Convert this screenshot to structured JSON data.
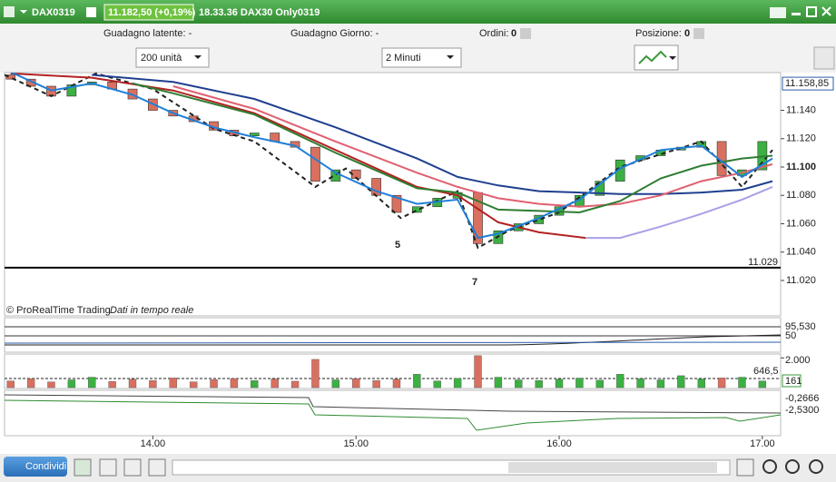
{
  "window": {
    "symbol": "DAX0319",
    "price": "11.182,50 (+0,19%)",
    "status": "18.33.36 DAX30 Only0319"
  },
  "info_bar": {
    "unrealized": "Guadagno latente: -",
    "daily": "Guadagno Giorno: -",
    "orders_label": "Ordini:",
    "orders": "0",
    "position_label": "Posizione:",
    "position": "0"
  },
  "controls": {
    "quantity": "200 unità",
    "timeframe": "2 Minuti"
  },
  "chart_data": {
    "type": "candlestick",
    "x": [
      13.3,
      13.4,
      13.5,
      13.6,
      13.7,
      13.8,
      13.9,
      14.0,
      14.1,
      14.2,
      14.3,
      14.4,
      14.5,
      14.6,
      14.7,
      14.8,
      14.9,
      15.0,
      15.1,
      15.2,
      15.3,
      15.4,
      15.5,
      15.6,
      15.7,
      15.8,
      15.9,
      16.0,
      16.1,
      16.2,
      16.3,
      16.4,
      16.5,
      16.6,
      16.7,
      16.8,
      16.9,
      17.0
    ],
    "open": [
      11165,
      11162,
      11157,
      11150,
      11158,
      11160,
      11155,
      11148,
      11140,
      11136,
      11132,
      11126,
      11122,
      11124,
      11118,
      11114,
      11090,
      11098,
      11092,
      11080,
      11068,
      11072,
      11078,
      11082,
      11046,
      11055,
      11060,
      11066,
      11072,
      11080,
      11090,
      11105,
      11108,
      11112,
      11114,
      11118,
      11094,
      11098
    ],
    "close": [
      11162,
      11157,
      11150,
      11158,
      11160,
      11155,
      11148,
      11140,
      11136,
      11132,
      11126,
      11122,
      11124,
      11118,
      11114,
      11090,
      11098,
      11092,
      11080,
      11068,
      11072,
      11078,
      11082,
      11046,
      11055,
      11060,
      11066,
      11072,
      11080,
      11090,
      11105,
      11108,
      11112,
      11114,
      11118,
      11094,
      11098,
      11118
    ],
    "up_color": "#3cb043",
    "down_color": "#d9705f",
    "lines": [
      {
        "color": "#222222",
        "style": "dashed",
        "x": [
          13.27,
          13.5,
          13.72,
          14.0,
          14.3,
          14.5,
          14.8,
          14.95,
          15.22,
          15.5,
          15.6,
          15.75,
          16.0,
          16.3,
          16.7,
          16.9,
          17.05
        ],
        "values": [
          11165,
          11150,
          11166,
          11155,
          11127,
          11118,
          11086,
          11099,
          11064,
          11083,
          11043,
          11055,
          11068,
          11100,
          11118,
          11086,
          11112
        ]
      },
      {
        "color": "#1f3f8f",
        "style": "solid",
        "x": [
          13.7,
          14.1,
          14.5,
          14.9,
          15.3,
          15.5,
          15.7,
          15.9,
          16.1,
          16.3,
          16.5,
          16.7,
          16.9,
          17.05
        ],
        "values": [
          11165,
          11160,
          11148,
          11128,
          11106,
          11093,
          11087,
          11083,
          11082,
          11081,
          11081,
          11082,
          11084,
          11090
        ]
      },
      {
        "color": "#e06070",
        "style": "solid",
        "x": [
          14.1,
          14.5,
          14.9,
          15.3,
          15.5,
          15.7,
          15.9,
          16.1,
          16.3,
          16.5,
          16.7,
          16.9,
          17.05
        ],
        "values": [
          11157,
          11141,
          11118,
          11096,
          11086,
          11078,
          11074,
          11072,
          11074,
          11080,
          11090,
          11096,
          11102
        ]
      },
      {
        "color": "#b22222",
        "style": "solid",
        "x": [
          13.3,
          13.7,
          14.1,
          14.5,
          14.9,
          15.3,
          15.5,
          15.7,
          15.9,
          16.13
        ],
        "values": [
          11166,
          11163,
          11154,
          11138,
          11112,
          11086,
          11080,
          11061,
          11054,
          11050
        ]
      },
      {
        "color": "#a8a0e8",
        "style": "solid",
        "x": [
          16.13,
          16.3,
          16.5,
          16.7,
          16.9,
          17.05
        ],
        "values": [
          11050,
          11050,
          11058,
          11067,
          11077,
          11086
        ]
      },
      {
        "color": "#2e7d32",
        "style": "solid",
        "x": [
          13.9,
          14.1,
          14.5,
          14.9,
          15.3,
          15.5,
          15.7,
          15.9,
          16.1,
          16.3,
          16.5,
          16.7,
          16.9,
          17.05
        ],
        "values": [
          11159,
          11152,
          11137,
          11110,
          11085,
          11082,
          11070,
          11069,
          11068,
          11076,
          11092,
          11101,
          11106,
          11108
        ]
      },
      {
        "color": "#1e7fd8",
        "style": "solid",
        "x": [
          13.3,
          13.5,
          13.7,
          13.9,
          14.1,
          14.3,
          14.5,
          14.7,
          14.9,
          15.1,
          15.3,
          15.5,
          15.6,
          15.7,
          15.9,
          16.1,
          16.3,
          16.5,
          16.7,
          16.9,
          17.05
        ],
        "values": [
          11167,
          11154,
          11159,
          11151,
          11138,
          11128,
          11121,
          11115,
          11096,
          11083,
          11074,
          11077,
          11050,
          11053,
          11064,
          11077,
          11099,
          11112,
          11115,
          11093,
          11106
        ]
      }
    ],
    "xlim": [
      13.27,
      17.09
    ],
    "ylim": [
      10995,
      11166.6
    ],
    "xticks": [
      {
        "value": 14,
        "label": "14.00"
      },
      {
        "value": 15,
        "label": "15.00"
      },
      {
        "value": 16,
        "label": "16.00"
      },
      {
        "value": 17,
        "label": "17.00"
      }
    ],
    "yticks": [
      {
        "value": 11140,
        "label": "11.140"
      },
      {
        "value": 11120,
        "label": "11.120"
      },
      {
        "value": 11100,
        "label": "11.100"
      },
      {
        "value": 11080,
        "label": "11.080"
      },
      {
        "value": 11060,
        "label": "11.060"
      },
      {
        "value": 11040,
        "label": "11.040"
      },
      {
        "value": 11020,
        "label": "11.020"
      }
    ],
    "bold_tick": 11100,
    "level": {
      "value": 11029,
      "label": "11.029"
    },
    "last_price": {
      "value": 11158.85,
      "label": "11.158,85"
    }
  },
  "annotations": [
    "5",
    "7"
  ],
  "footer": {
    "copyright": "© ProRealTime Trading",
    "feed": "Dati in tempo reale"
  },
  "volume": {
    "values": [
      450,
      600,
      380,
      520,
      700,
      420,
      560,
      480,
      650,
      390,
      540,
      610,
      470,
      580,
      430,
      1900,
      520,
      600,
      480,
      560,
      900,
      450,
      620,
      2150,
      700,
      520,
      480,
      560,
      640,
      500,
      900,
      600,
      520,
      800,
      580,
      650,
      700,
      450
    ],
    "ylim": [
      0,
      2200
    ],
    "ytick": {
      "value": 2000,
      "label": "2.000"
    }
  },
  "indicators": {
    "osc_value": "95,530",
    "osc_level": "50",
    "volume_avg": "646,5",
    "volume_last": "161",
    "line1": "-0,2666",
    "line2": "-2,5300"
  },
  "toolbar": {
    "share": "Condividi"
  }
}
